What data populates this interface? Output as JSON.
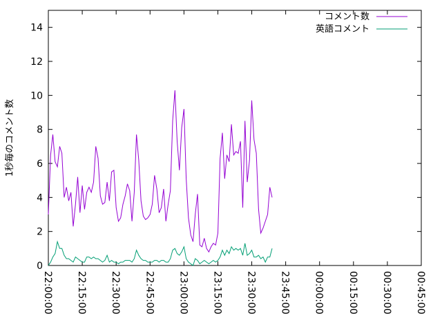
{
  "chart_data": {
    "type": "line",
    "title": "",
    "xlabel": "",
    "ylabel": "1秒毎のコメント数",
    "ylim": [
      0,
      15
    ],
    "yticks": [
      0,
      2,
      4,
      6,
      8,
      10,
      12,
      14
    ],
    "xlim_minutes": [
      0,
      165
    ],
    "xticks": [
      {
        "label": "22:00:00",
        "minute": 0
      },
      {
        "label": "22:15:00",
        "minute": 15
      },
      {
        "label": "22:30:00",
        "minute": 30
      },
      {
        "label": "22:45:00",
        "minute": 45
      },
      {
        "label": "23:00:00",
        "minute": 60
      },
      {
        "label": "23:15:00",
        "minute": 75
      },
      {
        "label": "23:30:00",
        "minute": 90
      },
      {
        "label": "23:45:00",
        "minute": 105
      },
      {
        "label": "00:00:00",
        "minute": 120
      },
      {
        "label": "00:15:00",
        "minute": 135
      },
      {
        "label": "00:30:00",
        "minute": 150
      },
      {
        "label": "00:45:00",
        "minute": 165
      }
    ],
    "grid": false,
    "legend_position": "top-right",
    "series": [
      {
        "name": "コメント数",
        "color": "#9400d3",
        "points": [
          [
            0,
            3.0
          ],
          [
            1,
            6.5
          ],
          [
            2,
            7.7
          ],
          [
            3,
            6.1
          ],
          [
            4,
            5.8
          ],
          [
            5,
            7.0
          ],
          [
            6,
            6.6
          ],
          [
            7,
            4.0
          ],
          [
            8,
            4.6
          ],
          [
            9,
            3.8
          ],
          [
            10,
            4.3
          ],
          [
            11,
            2.3
          ],
          [
            12,
            3.6
          ],
          [
            13,
            5.2
          ],
          [
            14,
            3.1
          ],
          [
            15,
            4.7
          ],
          [
            16,
            3.3
          ],
          [
            17,
            4.3
          ],
          [
            18,
            4.6
          ],
          [
            19,
            4.3
          ],
          [
            20,
            4.9
          ],
          [
            21,
            7.0
          ],
          [
            22,
            6.3
          ],
          [
            23,
            4.1
          ],
          [
            24,
            3.6
          ],
          [
            25,
            3.7
          ],
          [
            26,
            4.9
          ],
          [
            27,
            3.8
          ],
          [
            28,
            5.5
          ],
          [
            29,
            5.6
          ],
          [
            30,
            3.4
          ],
          [
            31,
            2.6
          ],
          [
            32,
            2.8
          ],
          [
            33,
            3.6
          ],
          [
            34,
            4.1
          ],
          [
            35,
            4.8
          ],
          [
            36,
            4.4
          ],
          [
            37,
            2.6
          ],
          [
            38,
            4.3
          ],
          [
            39,
            7.7
          ],
          [
            40,
            6.2
          ],
          [
            41,
            3.8
          ],
          [
            42,
            2.9
          ],
          [
            43,
            2.7
          ],
          [
            44,
            2.8
          ],
          [
            45,
            3.0
          ],
          [
            46,
            3.6
          ],
          [
            47,
            5.3
          ],
          [
            48,
            4.5
          ],
          [
            49,
            3.1
          ],
          [
            50,
            3.4
          ],
          [
            51,
            4.5
          ],
          [
            52,
            2.6
          ],
          [
            53,
            3.6
          ],
          [
            54,
            4.4
          ],
          [
            55,
            8.5
          ],
          [
            56,
            10.3
          ],
          [
            57,
            7.3
          ],
          [
            58,
            5.6
          ],
          [
            59,
            8.1
          ],
          [
            60,
            9.2
          ],
          [
            61,
            5.1
          ],
          [
            62,
            2.8
          ],
          [
            63,
            1.8
          ],
          [
            64,
            1.4
          ],
          [
            65,
            3.0
          ],
          [
            66,
            4.2
          ],
          [
            67,
            1.2
          ],
          [
            68,
            1.1
          ],
          [
            69,
            1.6
          ],
          [
            70,
            1.0
          ],
          [
            71,
            0.8
          ],
          [
            72,
            1.1
          ],
          [
            73,
            1.3
          ],
          [
            74,
            1.2
          ],
          [
            75,
            1.9
          ],
          [
            76,
            6.3
          ],
          [
            77,
            7.8
          ],
          [
            78,
            5.1
          ],
          [
            79,
            6.5
          ],
          [
            80,
            6.1
          ],
          [
            81,
            8.3
          ],
          [
            82,
            6.5
          ],
          [
            83,
            6.7
          ],
          [
            84,
            6.6
          ],
          [
            85,
            7.3
          ],
          [
            86,
            3.4
          ],
          [
            87,
            8.5
          ],
          [
            88,
            4.9
          ],
          [
            89,
            6.2
          ],
          [
            90,
            9.7
          ],
          [
            91,
            7.4
          ],
          [
            92,
            6.6
          ],
          [
            93,
            3.3
          ],
          [
            94,
            1.9
          ],
          [
            95,
            2.2
          ],
          [
            96,
            2.6
          ],
          [
            97,
            3.0
          ],
          [
            98,
            4.6
          ],
          [
            99,
            4.0
          ]
        ]
      },
      {
        "name": "英語コメント",
        "color": "#009e73",
        "points": [
          [
            0,
            0.0
          ],
          [
            1,
            0.2
          ],
          [
            2,
            0.5
          ],
          [
            3,
            0.7
          ],
          [
            4,
            1.4
          ],
          [
            5,
            1.0
          ],
          [
            6,
            1.0
          ],
          [
            7,
            0.6
          ],
          [
            8,
            0.4
          ],
          [
            9,
            0.4
          ],
          [
            10,
            0.3
          ],
          [
            11,
            0.2
          ],
          [
            12,
            0.5
          ],
          [
            13,
            0.4
          ],
          [
            14,
            0.3
          ],
          [
            15,
            0.2
          ],
          [
            16,
            0.2
          ],
          [
            17,
            0.5
          ],
          [
            18,
            0.5
          ],
          [
            19,
            0.4
          ],
          [
            20,
            0.5
          ],
          [
            21,
            0.4
          ],
          [
            22,
            0.4
          ],
          [
            23,
            0.3
          ],
          [
            24,
            0.2
          ],
          [
            25,
            0.3
          ],
          [
            26,
            0.6
          ],
          [
            27,
            0.2
          ],
          [
            28,
            0.3
          ],
          [
            29,
            0.2
          ],
          [
            30,
            0.2
          ],
          [
            31,
            0.1
          ],
          [
            32,
            0.2
          ],
          [
            33,
            0.2
          ],
          [
            34,
            0.3
          ],
          [
            35,
            0.3
          ],
          [
            36,
            0.3
          ],
          [
            37,
            0.2
          ],
          [
            38,
            0.4
          ],
          [
            39,
            0.9
          ],
          [
            40,
            0.6
          ],
          [
            41,
            0.4
          ],
          [
            42,
            0.3
          ],
          [
            43,
            0.3
          ],
          [
            44,
            0.2
          ],
          [
            45,
            0.2
          ],
          [
            46,
            0.2
          ],
          [
            47,
            0.3
          ],
          [
            48,
            0.3
          ],
          [
            49,
            0.2
          ],
          [
            50,
            0.3
          ],
          [
            51,
            0.3
          ],
          [
            52,
            0.2
          ],
          [
            53,
            0.2
          ],
          [
            54,
            0.4
          ],
          [
            55,
            0.9
          ],
          [
            56,
            1.0
          ],
          [
            57,
            0.7
          ],
          [
            58,
            0.6
          ],
          [
            59,
            0.8
          ],
          [
            60,
            1.1
          ],
          [
            61,
            0.4
          ],
          [
            62,
            0.2
          ],
          [
            63,
            0.1
          ],
          [
            64,
            0.0
          ],
          [
            65,
            0.4
          ],
          [
            66,
            0.3
          ],
          [
            67,
            0.1
          ],
          [
            68,
            0.2
          ],
          [
            69,
            0.3
          ],
          [
            70,
            0.2
          ],
          [
            71,
            0.1
          ],
          [
            72,
            0.2
          ],
          [
            73,
            0.3
          ],
          [
            74,
            0.2
          ],
          [
            75,
            0.3
          ],
          [
            76,
            0.5
          ],
          [
            77,
            0.9
          ],
          [
            78,
            0.6
          ],
          [
            79,
            0.9
          ],
          [
            80,
            0.7
          ],
          [
            81,
            1.1
          ],
          [
            82,
            0.9
          ],
          [
            83,
            1.0
          ],
          [
            84,
            0.9
          ],
          [
            85,
            1.0
          ],
          [
            86,
            0.6
          ],
          [
            87,
            1.3
          ],
          [
            88,
            0.6
          ],
          [
            89,
            0.7
          ],
          [
            90,
            0.9
          ],
          [
            91,
            0.5
          ],
          [
            92,
            0.5
          ],
          [
            93,
            0.6
          ],
          [
            94,
            0.4
          ],
          [
            95,
            0.5
          ],
          [
            96,
            0.2
          ],
          [
            97,
            0.5
          ],
          [
            98,
            0.5
          ],
          [
            99,
            1.0
          ]
        ]
      }
    ]
  }
}
